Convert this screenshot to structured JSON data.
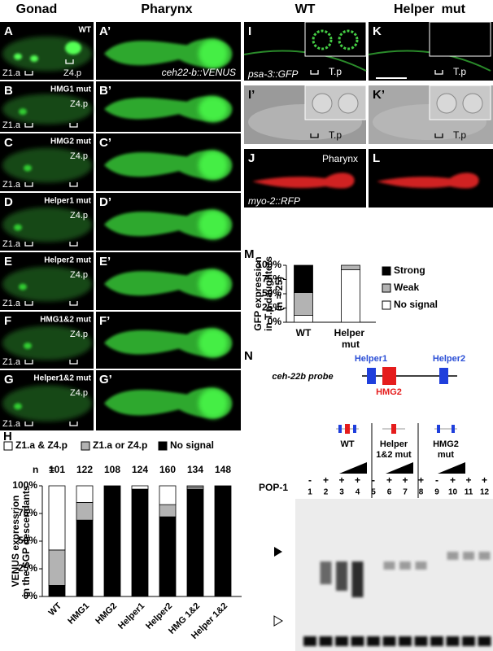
{
  "headers": {
    "gonad": "Gonad",
    "pharynx": "Pharynx",
    "wt": "WT",
    "helper_mut": "Helper  mut"
  },
  "rows": [
    {
      "letter": "A",
      "letter2": "A’",
      "name": "WT"
    },
    {
      "letter": "B",
      "letter2": "B’",
      "name": "HMG1 mut"
    },
    {
      "letter": "C",
      "letter2": "C’",
      "name": "HMG2 mut"
    },
    {
      "letter": "D",
      "letter2": "D’",
      "name": "Helper1 mut"
    },
    {
      "letter": "E",
      "letter2": "E’",
      "name": "Helper2 mut"
    },
    {
      "letter": "F",
      "letter2": "F’",
      "name": "HMG1&2 mut"
    },
    {
      "letter": "G",
      "letter2": "G’",
      "name": "Helper1&2 mut"
    }
  ],
  "cells": {
    "z1a": "Z1.a",
    "z4p": "Z4.p",
    "tp": "T.p"
  },
  "reporters": {
    "venus": "ceh22-b::VENUS",
    "gfp": "psa-3::GFP",
    "rfp": "myo-2::RFP"
  },
  "right": {
    "I": "I",
    "K": "K",
    "I2": "I’",
    "K2": "K’",
    "J": "J",
    "L": "L",
    "pharynx": "Pharynx"
  },
  "chart_data": [
    {
      "type": "bar",
      "stacked": true,
      "panel": "H",
      "ylabel": [
        "VENUS expressrion",
        "in the SGP descendants"
      ],
      "categories": [
        "WT",
        "HMG1",
        "HMG2",
        "Helper1",
        "Helper2",
        "HMG 1&2",
        "Helper 1&2"
      ],
      "n_label": "n",
      "n_eq": "=",
      "n": [
        101,
        122,
        108,
        124,
        160,
        134,
        148
      ],
      "series": [
        {
          "name": "Z1.a & Z4.p",
          "color": "#ffffff",
          "values": [
            58,
            15,
            0,
            3,
            17,
            1,
            0
          ]
        },
        {
          "name": "Z1.a or Z4.p",
          "color": "#b3b3b3",
          "values": [
            32,
            16,
            0,
            0,
            11,
            2,
            0
          ]
        },
        {
          "name": "No signal",
          "color": "#000000",
          "values": [
            10,
            69,
            100,
            97,
            72,
            97,
            100
          ]
        }
      ],
      "ylim": [
        0,
        100
      ],
      "yticks": [
        {
          "value": 0,
          "label": "0%"
        },
        {
          "value": 25,
          "label": "25%"
        },
        {
          "value": 50,
          "label": "50%"
        },
        {
          "value": 75,
          "label": "75%"
        },
        {
          "value": 100,
          "label": "100%"
        }
      ],
      "legend": "top"
    },
    {
      "type": "bar",
      "stacked": true,
      "panel": "M",
      "ylabel": [
        "GFP expression",
        "in T.p daughters",
        "(n = 25)"
      ],
      "categories": [
        "WT",
        "Helper mut"
      ],
      "series": [
        {
          "name": "Strong",
          "color": "#000000",
          "values": [
            48,
            0
          ]
        },
        {
          "name": "Weak",
          "color": "#b3b3b3",
          "values": [
            40,
            8
          ]
        },
        {
          "name": "No signal",
          "color": "#ffffff",
          "values": [
            12,
            92
          ]
        }
      ],
      "ylim": [
        0,
        100
      ],
      "yticks": [
        {
          "value": 0,
          "label": "0%"
        },
        {
          "value": 25,
          "label": "25%"
        },
        {
          "value": 50,
          "label": "50%"
        },
        {
          "value": 75,
          "label": "75%"
        },
        {
          "value": 100,
          "label": "100%"
        }
      ],
      "legend": "right"
    }
  ],
  "gel": {
    "panel": "N",
    "probe": "ceh-22b probe",
    "helper1": "Helper1",
    "hmg2": "HMG2",
    "helper2": "Helper2",
    "groups": [
      [
        "WT"
      ],
      [
        "Helper",
        "1&2 mut"
      ],
      [
        "HMG2",
        "mut"
      ]
    ],
    "pop1": "POP-1",
    "signs": [
      "-",
      "+",
      "+",
      "+",
      "-",
      "+",
      "+",
      "+",
      "-",
      "+",
      "+",
      "+"
    ],
    "lanes": [
      1,
      2,
      3,
      4,
      5,
      6,
      7,
      8,
      9,
      10,
      11,
      12
    ]
  }
}
